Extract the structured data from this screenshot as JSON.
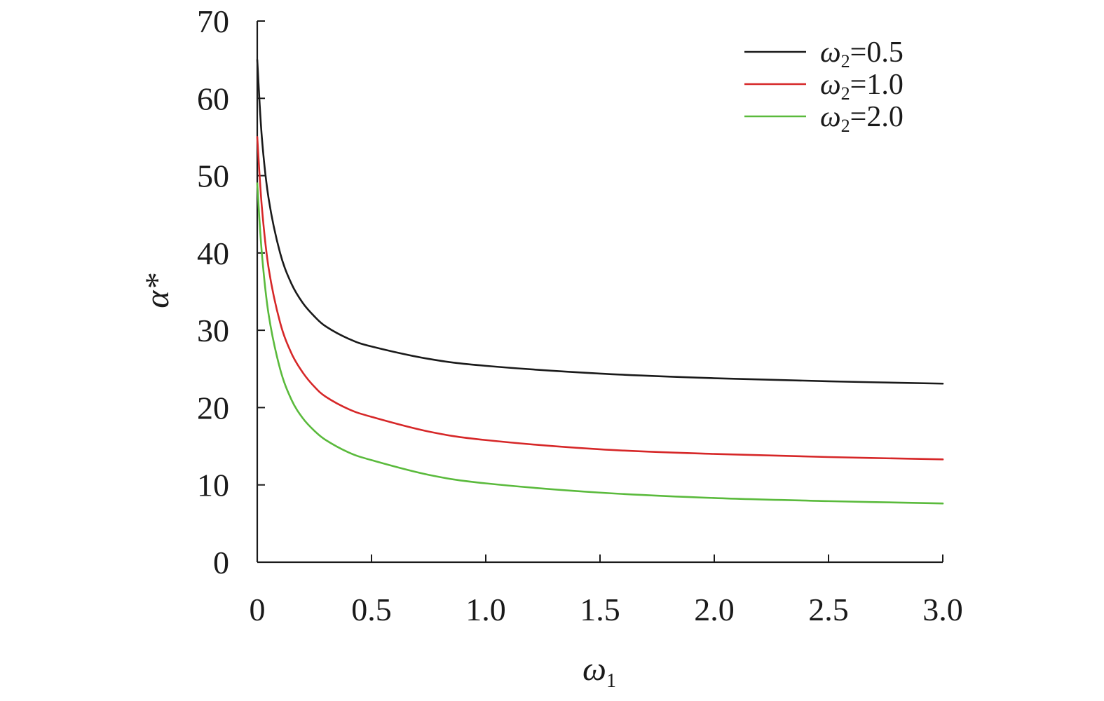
{
  "chart_data": {
    "type": "line",
    "xlabel": "ω",
    "xlabel_sub": "1",
    "ylabel": "α*",
    "xlim": [
      0,
      3.0
    ],
    "ylim": [
      0,
      70
    ],
    "x_ticks": [
      0,
      0.5,
      1.0,
      1.5,
      2.0,
      2.5,
      3.0
    ],
    "x_tick_labels": [
      "0",
      "0.5",
      "1.0",
      "1.5",
      "2.0",
      "2.5",
      "3.0"
    ],
    "y_ticks": [
      0,
      10,
      20,
      30,
      40,
      50,
      60,
      70
    ],
    "y_tick_labels": [
      "0",
      "10",
      "20",
      "30",
      "40",
      "50",
      "60",
      "70"
    ],
    "grid": false,
    "legend_position": "top-right",
    "series": [
      {
        "name": "ω2=0.5",
        "legend_symbol": "ω",
        "legend_sub": "2",
        "legend_value": "=0.5",
        "color": "#1a1a1a",
        "x": [
          0,
          0.02,
          0.05,
          0.1,
          0.15,
          0.2,
          0.25,
          0.3,
          0.4,
          0.5,
          0.75,
          1.0,
          1.5,
          2.0,
          2.5,
          3.0
        ],
        "y": [
          65,
          55,
          47,
          40,
          36,
          33.5,
          31.8,
          30.5,
          28.9,
          27.9,
          26.3,
          25.4,
          24.4,
          23.8,
          23.4,
          23.1
        ]
      },
      {
        "name": "ω2=1.0",
        "legend_symbol": "ω",
        "legend_sub": "2",
        "legend_value": "=1.0",
        "color": "#d62728",
        "x": [
          0,
          0.02,
          0.05,
          0.1,
          0.15,
          0.2,
          0.25,
          0.3,
          0.4,
          0.5,
          0.75,
          1.0,
          1.5,
          2.0,
          2.5,
          3.0
        ],
        "y": [
          55,
          46,
          38,
          31,
          27,
          24.5,
          22.7,
          21.4,
          19.8,
          18.8,
          16.9,
          15.8,
          14.6,
          14.0,
          13.6,
          13.3
        ]
      },
      {
        "name": "ω2=2.0",
        "legend_symbol": "ω",
        "legend_sub": "2",
        "legend_value": "=2.0",
        "color": "#5aba3c",
        "x": [
          0,
          0.02,
          0.05,
          0.1,
          0.15,
          0.2,
          0.25,
          0.3,
          0.4,
          0.5,
          0.75,
          1.0,
          1.5,
          2.0,
          2.5,
          3.0
        ],
        "y": [
          49,
          40,
          32,
          25,
          21,
          18.6,
          17.0,
          15.8,
          14.2,
          13.2,
          11.3,
          10.2,
          9.0,
          8.3,
          7.9,
          7.6
        ]
      }
    ]
  }
}
